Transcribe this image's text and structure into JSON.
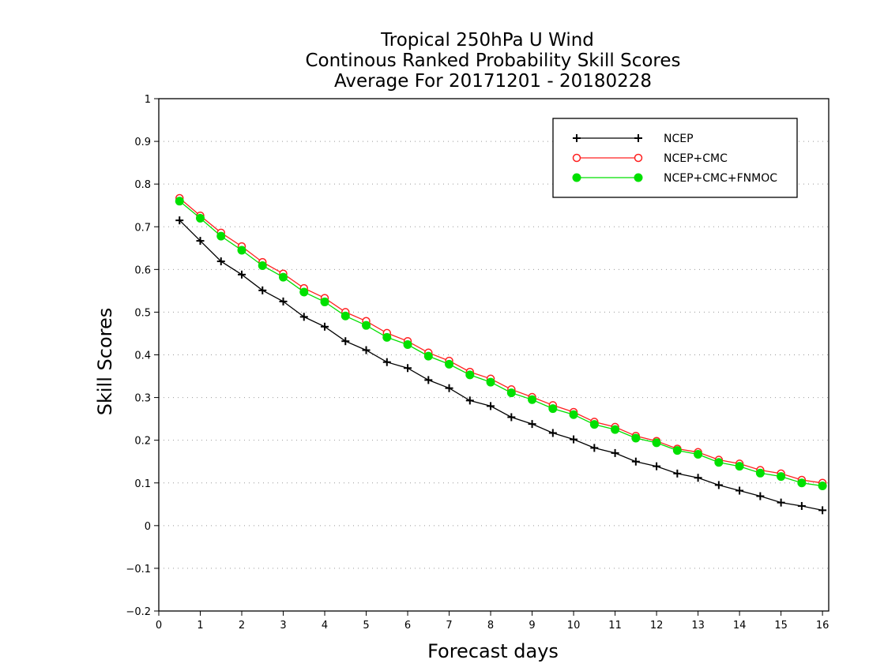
{
  "chart_data": {
    "type": "line",
    "title": [
      "Tropical 250hPa U Wind",
      "Continous Ranked Probability Skill Scores",
      "Average For 20171201 - 20180228"
    ],
    "xlabel": "Forecast days",
    "ylabel": "Skill Scores",
    "xlim": [
      0,
      16.15
    ],
    "ylim": [
      -0.2,
      1
    ],
    "xticks": [
      0,
      1,
      2,
      3,
      4,
      5,
      6,
      7,
      8,
      9,
      10,
      11,
      12,
      13,
      14,
      15,
      16
    ],
    "xtick_labels": [
      "0",
      "1",
      "2",
      "3",
      "4",
      "5",
      "6",
      "7",
      "8",
      "9",
      "10",
      "11",
      "12",
      "13",
      "14",
      "15",
      "16"
    ],
    "yticks": [
      -0.2,
      -0.1,
      0,
      0.1,
      0.2,
      0.3,
      0.4,
      0.5,
      0.6,
      0.7,
      0.8,
      0.9,
      1
    ],
    "ytick_labels": [
      "−0.2",
      "−0.1",
      "0",
      "0.1",
      "0.2",
      "0.3",
      "0.4",
      "0.5",
      "0.6",
      "0.7",
      "0.8",
      "0.9",
      "1"
    ],
    "grid": "horizontal dotted",
    "legend_position": "top-right",
    "x": [
      0.5,
      1,
      1.5,
      2,
      2.5,
      3,
      3.5,
      4,
      4.5,
      5,
      5.5,
      6,
      6.5,
      7,
      7.5,
      8,
      8.5,
      9,
      9.5,
      10,
      10.5,
      11,
      11.5,
      12,
      12.5,
      13,
      13.5,
      14,
      14.5,
      15,
      15.5,
      16
    ],
    "series": [
      {
        "name": "NCEP",
        "color": "#000000",
        "marker": "plus",
        "values": [
          0.715,
          0.667,
          0.619,
          0.588,
          0.551,
          0.525,
          0.489,
          0.466,
          0.432,
          0.411,
          0.383,
          0.369,
          0.341,
          0.322,
          0.293,
          0.28,
          0.254,
          0.238,
          0.217,
          0.202,
          0.182,
          0.17,
          0.15,
          0.139,
          0.122,
          0.112,
          0.095,
          0.082,
          0.069,
          0.054,
          0.046,
          0.036
        ]
      },
      {
        "name": "NCEP+CMC",
        "color": "#ff2020",
        "marker": "open-circle",
        "values": [
          0.767,
          0.726,
          0.686,
          0.654,
          0.617,
          0.59,
          0.556,
          0.533,
          0.5,
          0.479,
          0.451,
          0.432,
          0.405,
          0.386,
          0.36,
          0.344,
          0.319,
          0.301,
          0.282,
          0.266,
          0.243,
          0.231,
          0.21,
          0.198,
          0.18,
          0.172,
          0.154,
          0.145,
          0.13,
          0.122,
          0.107,
          0.1
        ]
      },
      {
        "name": "NCEP+CMC+FNMOC",
        "color": "#00e000",
        "marker": "filled-circle",
        "values": [
          0.76,
          0.72,
          0.678,
          0.645,
          0.609,
          0.582,
          0.547,
          0.524,
          0.491,
          0.469,
          0.441,
          0.424,
          0.397,
          0.378,
          0.353,
          0.336,
          0.311,
          0.295,
          0.274,
          0.26,
          0.237,
          0.225,
          0.205,
          0.194,
          0.176,
          0.167,
          0.148,
          0.139,
          0.123,
          0.115,
          0.1,
          0.093
        ]
      }
    ]
  }
}
